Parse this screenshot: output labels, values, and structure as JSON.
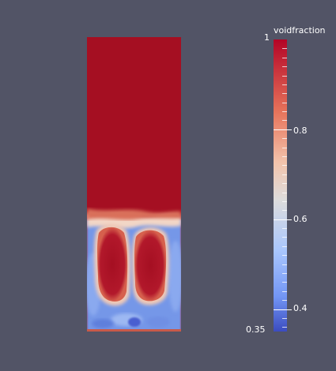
{
  "colorbar": {
    "title": "voidfraction",
    "max_label": "1",
    "min_label": "0.35",
    "tick_labels": [
      "0.8",
      "0.6",
      "0.4"
    ],
    "range": [
      0.35,
      1
    ],
    "tick_values": [
      0.8,
      0.6,
      0.4
    ]
  },
  "colors": {
    "background": "#525466",
    "colormap_top": "#b40426",
    "colormap_mid": "#dddcdc",
    "colormap_bottom": "#3b4cc0"
  }
}
